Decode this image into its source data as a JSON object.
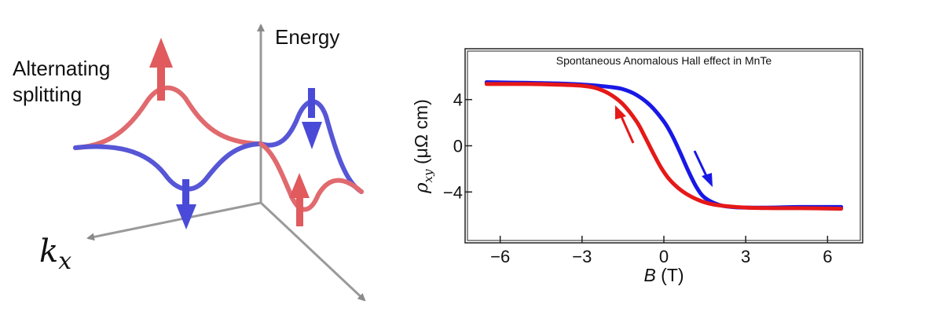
{
  "diagram": {
    "energy_label": "Energy",
    "splitting_label_line1": "Alternating",
    "splitting_label_line2": "splitting",
    "kx_label_base": "k",
    "kx_label_sub": "x",
    "up_color": "#e0454a",
    "down_color": "#3f3fd8",
    "spin_up_icon": "red-up-arrow-icon",
    "spin_down_icon": "blue-down-arrow-icon"
  },
  "chart_data": {
    "type": "line",
    "title": "Spontaneous Anomalous Hall effect in MnTe",
    "xlabel_italic": "B",
    "xlabel_unit": " (T)",
    "ylabel_symbol": "ρ",
    "ylabel_sub": "xy",
    "ylabel_unit": "  (μΩ cm)",
    "xlim": [
      -7.2,
      7.2
    ],
    "ylim": [
      -8.2,
      8.2
    ],
    "xticks": [
      -6,
      -3,
      0,
      3,
      6
    ],
    "xtick_labels": [
      "−6",
      "−3",
      "0",
      "3",
      "6"
    ],
    "yticks": [
      4,
      0,
      -4
    ],
    "ytick_labels": [
      "4",
      "0",
      "−4"
    ],
    "grid": false,
    "series": [
      {
        "color": "#1818e6",
        "sweep": "down",
        "x": [
          -6.5,
          -5,
          -4,
          -3,
          -2,
          -1.5,
          -1,
          -0.5,
          0,
          0.3,
          0.6,
          0.9,
          1.2,
          1.5,
          2,
          2.5,
          3,
          4,
          5,
          6.5
        ],
        "y": [
          5.5,
          5.45,
          5.4,
          5.3,
          5.1,
          4.9,
          4.4,
          3.5,
          2.1,
          0.9,
          -0.6,
          -2.2,
          -3.6,
          -4.5,
          -5.1,
          -5.3,
          -5.35,
          -5.35,
          -5.3,
          -5.3
        ]
      },
      {
        "color": "#e61818",
        "sweep": "up",
        "x": [
          -6.5,
          -5,
          -4,
          -3,
          -2.5,
          -2,
          -1.5,
          -1,
          -0.7,
          -0.4,
          -0.1,
          0.2,
          0.6,
          1,
          1.5,
          2,
          3,
          4,
          5,
          6.5
        ],
        "y": [
          5.35,
          5.35,
          5.3,
          5.2,
          5.0,
          4.5,
          3.6,
          2.1,
          0.8,
          -0.6,
          -1.9,
          -2.9,
          -3.8,
          -4.4,
          -4.9,
          -5.15,
          -5.35,
          -5.4,
          -5.4,
          -5.45
        ]
      }
    ]
  }
}
